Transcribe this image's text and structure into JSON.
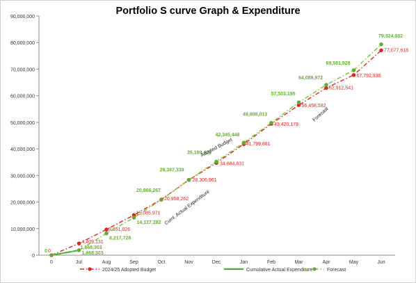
{
  "chart_data": {
    "type": "line",
    "title": "Portfolio S curve Graph & Expenditure",
    "xlabel": "",
    "ylabel": "",
    "categories": [
      "0",
      "Jul",
      "Aug",
      "Sep",
      "Oct",
      "Nov",
      "Dec",
      "Jan",
      "Feb",
      "Mar",
      "Apr",
      "May",
      "Jun"
    ],
    "ylim": [
      0,
      90000000
    ],
    "yticks": [
      "0",
      "10,000,000",
      "20,000,000",
      "30,000,000",
      "40,000,000",
      "50,000,000",
      "60,000,000",
      "70,000,000",
      "80,000,000",
      "90,000,000"
    ],
    "grid": false,
    "legend_position": "bottom",
    "series": [
      {
        "name": "2024/25 Adopted Budget",
        "color": "#e0201c",
        "style": "dash-dot-markers",
        "values": [
          0,
          4409131,
          9651026,
          15085971,
          20958262,
          28306961,
          34684831,
          41799881,
          49420178,
          56458592,
          62912541,
          67792936,
          77077618
        ],
        "labels": [
          "0",
          "4,409,131",
          "9,651,026",
          "15,085,971",
          "20,958,262",
          "28,306,961",
          "34,684,831",
          "41,799,881",
          "49,420,178",
          "56,458,592",
          "62,912,541",
          "67,792,936",
          "77,077,618"
        ]
      },
      {
        "name": "Cumulative Actual Expenditure",
        "color": "#3cb034",
        "style": "solid",
        "values": [
          0,
          1868303,
          null,
          null,
          null,
          null,
          null,
          null,
          null,
          null,
          null,
          null,
          null
        ],
        "labels": [
          "",
          "1,868,303",
          "",
          "",
          "",
          "",
          "",
          "",
          "",
          "",
          "",
          "",
          ""
        ]
      },
      {
        "name": "Forecast",
        "color": "#7cc427",
        "style": "dash-dot-markers",
        "values": [
          0,
          1868303,
          8217728,
          14137282,
          20866267,
          28387339,
          35189429,
          42345448,
          49808013,
          57503195,
          64089972,
          69581928,
          79324032
        ],
        "labels": [
          "0",
          "1,868,303",
          "8,217,728",
          "14,137,282",
          "20,866,267",
          "28,387,339",
          "35,189,429",
          "42,345,448",
          "49,808,013",
          "57,503,195",
          "64,089,972",
          "69,581,928",
          "79,324,032"
        ]
      }
    ],
    "annotations": [
      "Adopted Budget",
      "Cuml. Actual Expenditure",
      "Forecast"
    ]
  }
}
